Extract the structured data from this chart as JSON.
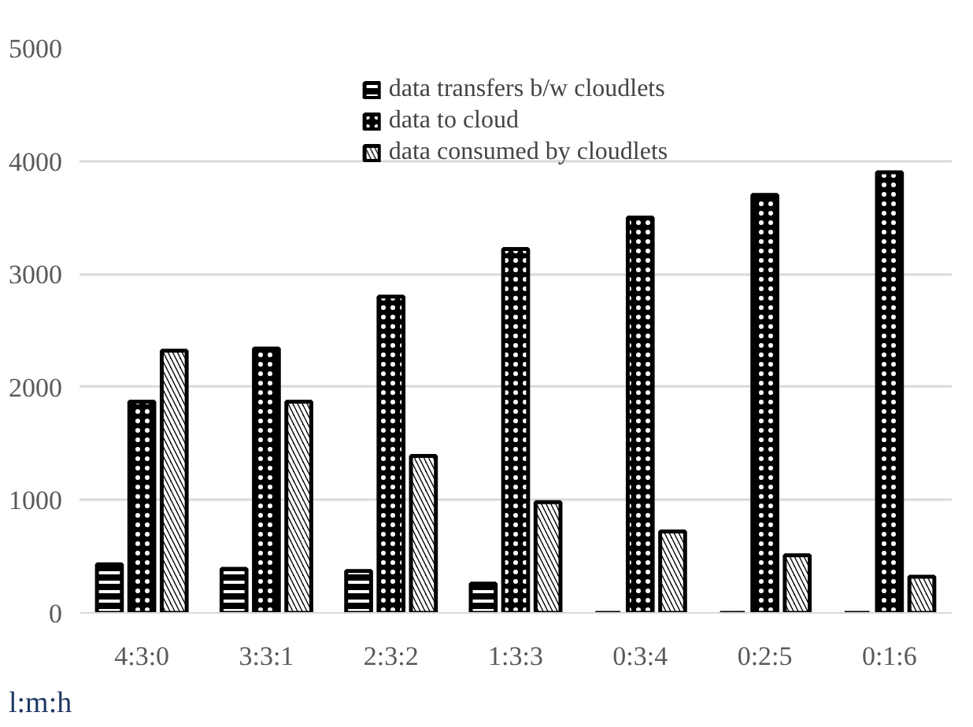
{
  "chart_data": {
    "type": "bar",
    "xlabel": "l:m:h",
    "categories": [
      "4:3:0",
      "3:3:1",
      "2:3:2",
      "1:3:3",
      "0:3:4",
      "0:2:5",
      "0:1:6"
    ],
    "series": [
      {
        "name": "data transfers b/w cloudlets",
        "color": "#000000",
        "values": [
          430,
          390,
          370,
          260,
          0,
          0,
          0
        ]
      },
      {
        "name": "data to cloud",
        "color": "#000000",
        "values": [
          1870,
          2340,
          2800,
          3220,
          3500,
          3700,
          3900
        ]
      },
      {
        "name": "data consumed by cloudlets",
        "color": "#000000",
        "values": [
          2320,
          1870,
          1390,
          980,
          720,
          510,
          320
        ]
      }
    ],
    "ylim": [
      0,
      5000
    ],
    "yticks": [
      0,
      1000,
      2000,
      3000,
      4000,
      5000
    ],
    "grid": "y",
    "legend": "top"
  }
}
